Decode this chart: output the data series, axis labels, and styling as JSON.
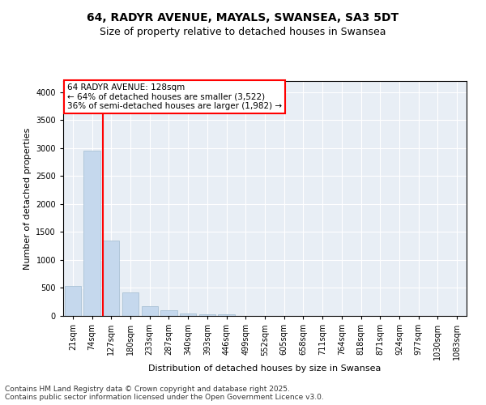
{
  "title1": "64, RADYR AVENUE, MAYALS, SWANSEA, SA3 5DT",
  "title2": "Size of property relative to detached houses in Swansea",
  "xlabel": "Distribution of detached houses by size in Swansea",
  "ylabel": "Number of detached properties",
  "categories": [
    "21sqm",
    "74sqm",
    "127sqm",
    "180sqm",
    "233sqm",
    "287sqm",
    "340sqm",
    "393sqm",
    "446sqm",
    "499sqm",
    "552sqm",
    "605sqm",
    "658sqm",
    "711sqm",
    "764sqm",
    "818sqm",
    "871sqm",
    "924sqm",
    "977sqm",
    "1030sqm",
    "1083sqm"
  ],
  "values": [
    540,
    2960,
    1340,
    420,
    175,
    95,
    45,
    30,
    30,
    0,
    0,
    0,
    0,
    0,
    0,
    0,
    0,
    0,
    0,
    0,
    0
  ],
  "bar_color": "#c5d8ed",
  "bar_edge_color": "#a0bbcf",
  "vline_x_index": 2,
  "vline_color": "red",
  "annotation_text": "64 RADYR AVENUE: 128sqm\n← 64% of detached houses are smaller (3,522)\n36% of semi-detached houses are larger (1,982) →",
  "annotation_box_color": "white",
  "annotation_edge_color": "red",
  "ylim": [
    0,
    4200
  ],
  "yticks": [
    0,
    500,
    1000,
    1500,
    2000,
    2500,
    3000,
    3500,
    4000
  ],
  "background_color": "#e8eef5",
  "footer1": "Contains HM Land Registry data © Crown copyright and database right 2025.",
  "footer2": "Contains public sector information licensed under the Open Government Licence v3.0.",
  "title_fontsize": 10,
  "subtitle_fontsize": 9,
  "ylabel_fontsize": 8,
  "xlabel_fontsize": 8,
  "tick_fontsize": 7,
  "annotation_fontsize": 7.5,
  "footer_fontsize": 6.5
}
